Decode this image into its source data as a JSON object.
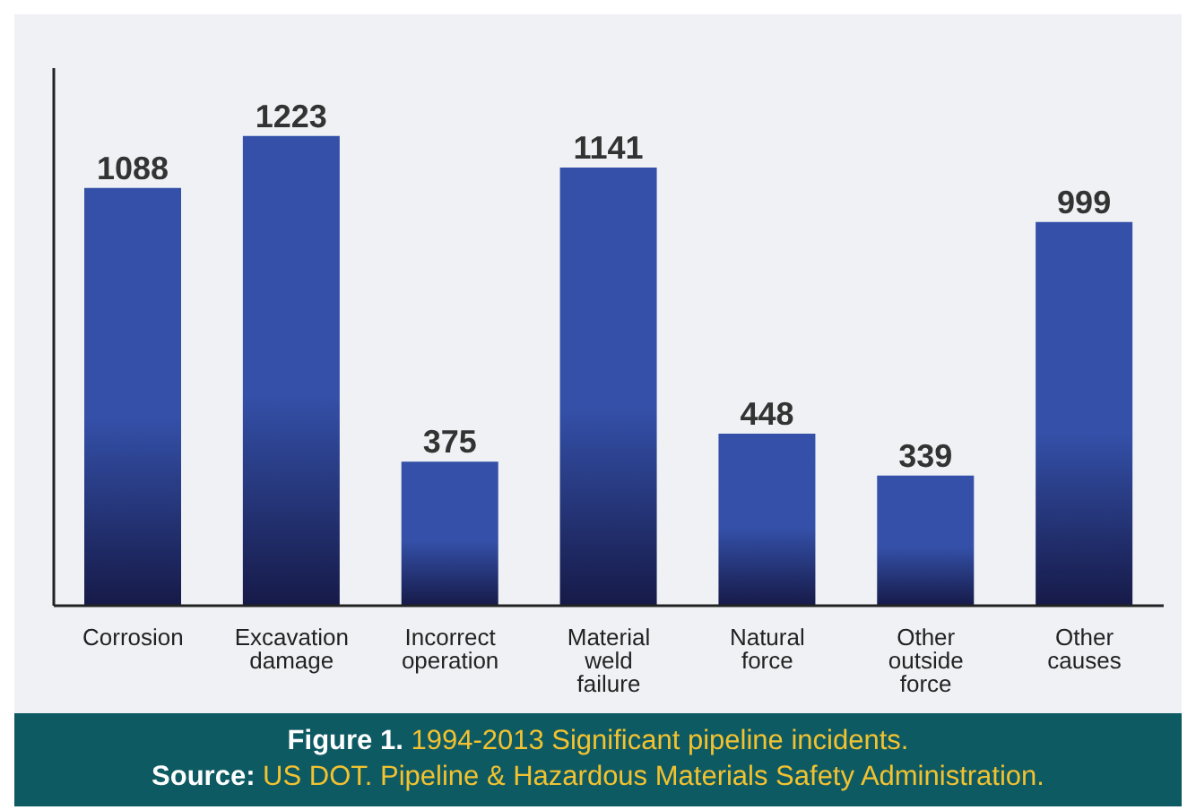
{
  "chart_data": {
    "type": "bar",
    "categories": [
      "Corrosion",
      "Excavation damage",
      "Incorrect operation",
      "Material weld failure",
      "Natural force",
      "Other outside force",
      "Other causes"
    ],
    "values": [
      1088,
      1223,
      375,
      1141,
      448,
      339,
      999
    ],
    "color": "#3450a8",
    "data_labels": true,
    "grid": false,
    "legend": false,
    "annotations": [
      "Figure 1. 1994-2013 Significant pipeline incidents.",
      "Source: US DOT. Pipeline & Hazardous Materials Safety Administration."
    ]
  }
}
